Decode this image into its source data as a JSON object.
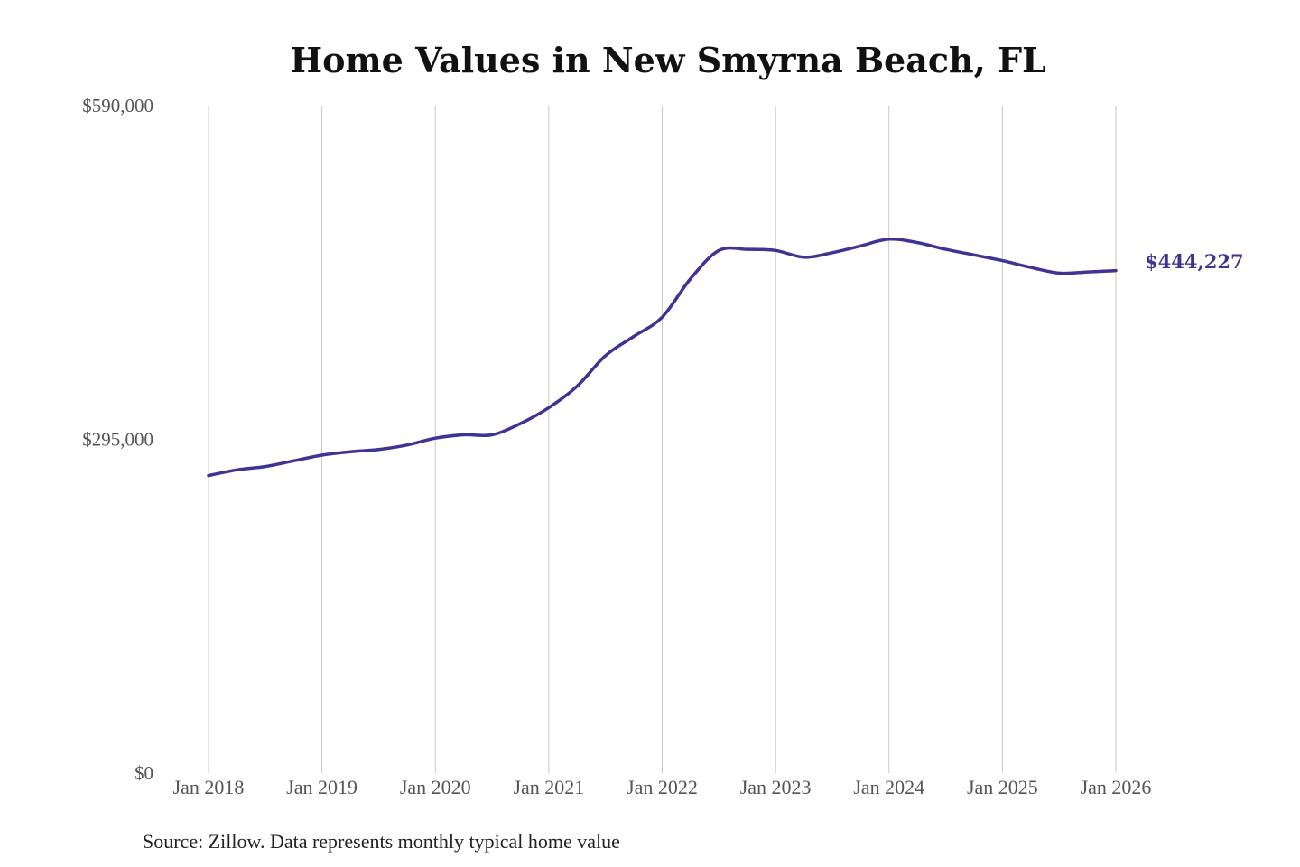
{
  "chart_data": {
    "type": "line",
    "title": "Home Values in New Smyrna Beach, FL",
    "source": "Source: Zillow. Data represents monthly typical home value",
    "x_ticks": [
      "Jan 2018",
      "Jan 2019",
      "Jan 2020",
      "Jan 2021",
      "Jan 2022",
      "Jan 2023",
      "Jan 2024",
      "Jan 2025",
      "Jan 2026"
    ],
    "y_ticks": [
      {
        "value": 590000,
        "label": "$590,000"
      },
      {
        "value": 295000,
        "label": "$295,000"
      },
      {
        "value": 0,
        "label": "$0"
      }
    ],
    "ylim": [
      0,
      590000
    ],
    "xlim": [
      "2018-01",
      "2026-01"
    ],
    "grid_vertical": true,
    "line_color": "#3d3494",
    "end_label": "$444,227",
    "series": [
      {
        "points": [
          [
            "2018-01",
            263000
          ],
          [
            "2018-04",
            268000
          ],
          [
            "2018-07",
            271000
          ],
          [
            "2018-10",
            276000
          ],
          [
            "2019-01",
            281000
          ],
          [
            "2019-04",
            284000
          ],
          [
            "2019-07",
            286000
          ],
          [
            "2019-10",
            290000
          ],
          [
            "2020-01",
            296000
          ],
          [
            "2020-04",
            299000
          ],
          [
            "2020-07",
            299000
          ],
          [
            "2020-10",
            309000
          ],
          [
            "2021-01",
            323000
          ],
          [
            "2021-04",
            342000
          ],
          [
            "2021-07",
            369000
          ],
          [
            "2021-10",
            386000
          ],
          [
            "2022-01",
            403000
          ],
          [
            "2022-04",
            437000
          ],
          [
            "2022-07",
            462000
          ],
          [
            "2022-10",
            463000
          ],
          [
            "2023-01",
            462000
          ],
          [
            "2023-04",
            456000
          ],
          [
            "2023-07",
            460000
          ],
          [
            "2023-10",
            466000
          ],
          [
            "2024-01",
            472000
          ],
          [
            "2024-04",
            469000
          ],
          [
            "2024-07",
            463000
          ],
          [
            "2024-10",
            458000
          ],
          [
            "2025-01",
            453000
          ],
          [
            "2025-04",
            447000
          ],
          [
            "2025-07",
            442000
          ],
          [
            "2025-10",
            443000
          ],
          [
            "2026-01",
            444227
          ]
        ]
      }
    ]
  }
}
